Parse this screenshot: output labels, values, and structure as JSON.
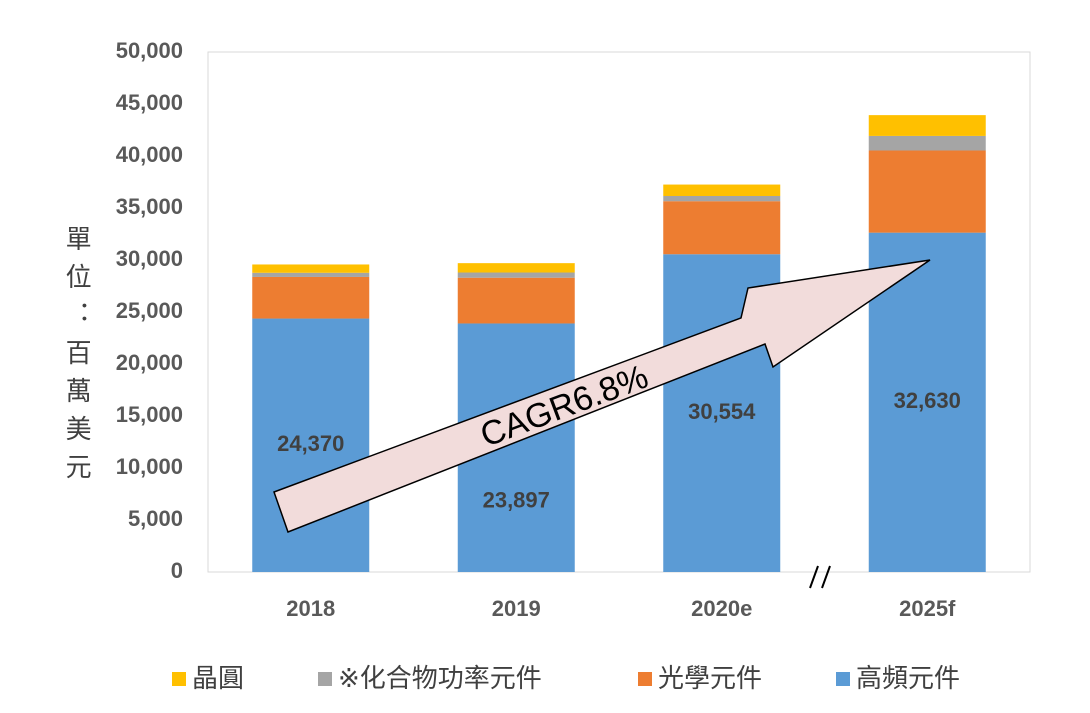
{
  "chart_data": {
    "type": "stacked_bar",
    "y_label": "單位：百萬美元",
    "annotation": "CAGR6.8%",
    "categories": [
      "2018",
      "2019",
      "2020e",
      "2025f"
    ],
    "series": [
      {
        "name": "高頻元件",
        "color": "#5b9bd5",
        "values": [
          24370,
          23897,
          30554,
          32630
        ],
        "value_labels": [
          "24,370",
          "23,897",
          "30,554",
          "32,630"
        ]
      },
      {
        "name": "光學元件",
        "color": "#ed7d31",
        "values": [
          4000,
          4400,
          5100,
          7900
        ]
      },
      {
        "name": "※化合物功率元件",
        "color": "#a5a5a5",
        "values": [
          400,
          500,
          500,
          1400
        ]
      },
      {
        "name": "晶圓",
        "color": "#ffc000",
        "values": [
          800,
          900,
          1100,
          2000
        ]
      }
    ],
    "ylim": [
      0,
      50000
    ],
    "yticks": [
      0,
      {
        "value": 5000,
        "label": "5,000"
      },
      {
        "value": 10000,
        "label": "10,000"
      },
      {
        "value": 15000,
        "label": "15,000"
      },
      {
        "value": 20000,
        "label": "20,000"
      },
      {
        "value": 25000,
        "label": "25,000"
      },
      {
        "value": 30000,
        "label": "30,000"
      },
      {
        "value": 35000,
        "label": "35,000"
      },
      {
        "value": 40000,
        "label": "40,000"
      },
      {
        "value": 45000,
        "label": "45,000"
      },
      {
        "value": 50000,
        "label": "50,000"
      }
    ]
  }
}
